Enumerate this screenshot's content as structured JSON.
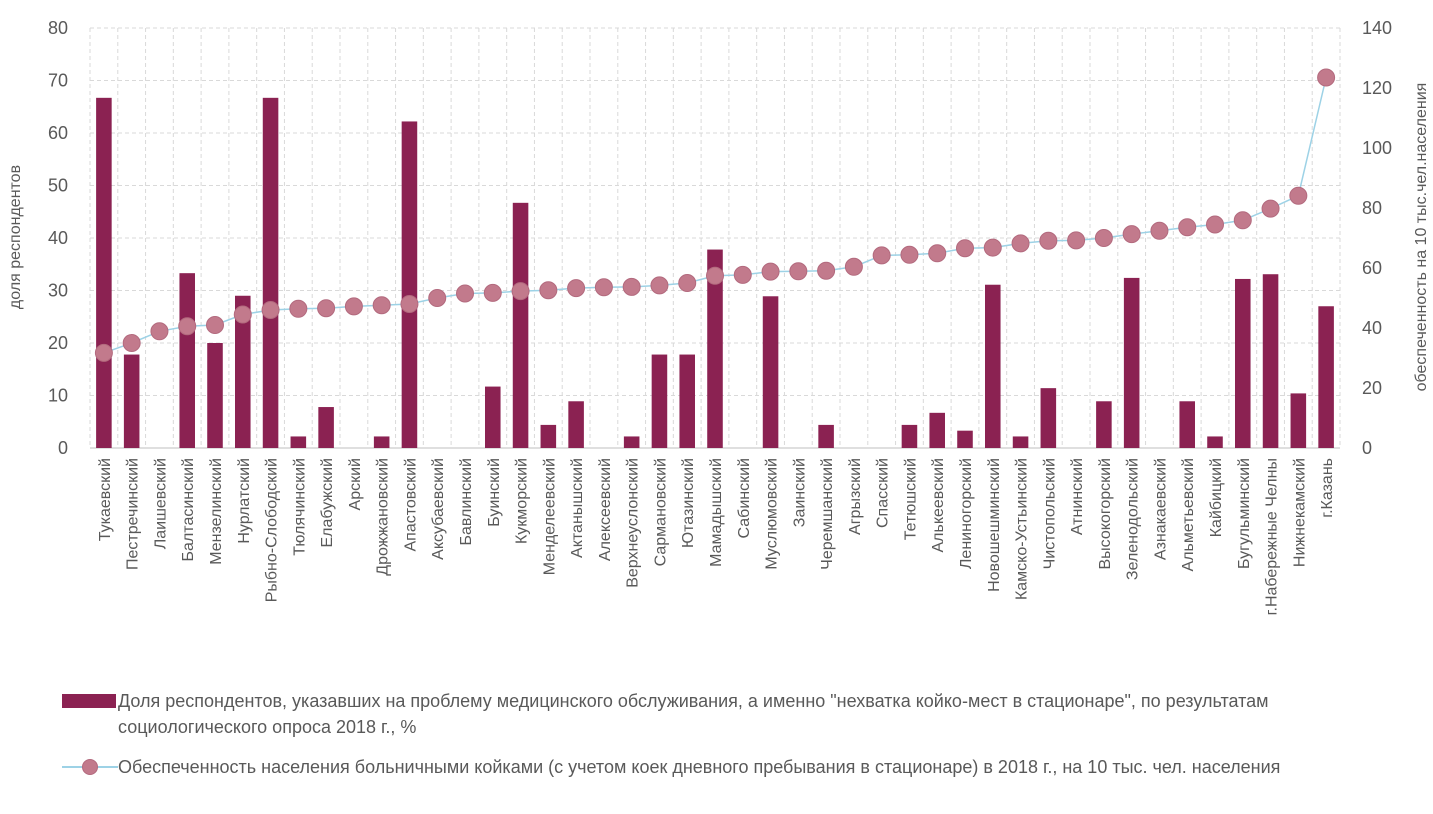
{
  "chart_data": {
    "type": "bar",
    "categories": [
      "Тукаевский",
      "Пестречинский",
      "Лаишевский",
      "Балтасинский",
      "Мензелинский",
      "Нурлатский",
      "Рыбно-Слободский",
      "Тюлячинский",
      "Елабужский",
      "Арский",
      "Дрожжановский",
      "Апастовский",
      "Аксубаевский",
      "Бавлинский",
      "Буинский",
      "Кукморский",
      "Менделеевский",
      "Актанышский",
      "Алексеевский",
      "Верхнеуслонский",
      "Сармановский",
      "Ютазинский",
      "Мамадышский",
      "Сабинский",
      "Муслюмовский",
      "Заинский",
      "Черемшанский",
      "Агрызский",
      "Спасский",
      "Тетюшский",
      "Алькеевский",
      "Лениногорский",
      "Новошешминский",
      "Камско-Устьинский",
      "Чистопольский",
      "Атнинский",
      "Высокогорский",
      "Зеленодольский",
      "Азнакаевский",
      "Альметьевский",
      "Кайбицкий",
      "Бугульминский",
      "г.Набережные Челны",
      "Нижнекамский",
      "г.Казань"
    ],
    "series": [
      {
        "name": "Доля респондентов, указавших на проблему медицинского обслуживания, а именно \"нехватка койко-мест в стационаре\", по результатам социологического опроса 2018 г., %",
        "type": "bar",
        "axis": "left",
        "color": "#8B2252",
        "values": [
          66.7,
          17.8,
          0,
          33.3,
          20,
          29,
          66.7,
          2.2,
          7.8,
          0,
          2.2,
          62.2,
          0,
          0,
          11.7,
          46.7,
          4.4,
          8.9,
          0,
          2.2,
          17.8,
          17.8,
          37.8,
          0,
          28.9,
          0,
          4.4,
          0,
          0,
          4.4,
          6.7,
          3.3,
          31.1,
          2.2,
          11.4,
          0,
          8.9,
          32.4,
          0,
          8.9,
          2.2,
          32.2,
          33.1,
          10.4,
          27
        ]
      },
      {
        "name": "Обеспеченность населения больничными койками (с учетом коек дневного пребывания в стационаре) в 2018 г., на 10 тыс. чел. населения",
        "type": "line",
        "axis": "right",
        "color": "#9dd2e6",
        "marker_color": "#c27a8c",
        "values": [
          31.7,
          35,
          38.9,
          40.6,
          41,
          44.5,
          46,
          46.4,
          46.6,
          47.2,
          47.6,
          48,
          50,
          51.5,
          51.7,
          52.3,
          52.6,
          53.3,
          53.6,
          53.7,
          54.2,
          55,
          57.4,
          57.7,
          58.8,
          58.9,
          59.1,
          60.4,
          64.2,
          64.4,
          64.9,
          66.6,
          66.8,
          68.2,
          69.1,
          69.2,
          70,
          71.3,
          72.4,
          73.6,
          74.5,
          75.9,
          79.8,
          84.1,
          123.5
        ]
      }
    ],
    "ylabel": "доля респондентов",
    "y2label": "обеспеченность  на 10 тыс.чел.населения",
    "ylim": [
      0,
      80
    ],
    "y2lim": [
      0,
      140
    ],
    "yticks": [
      0,
      10,
      20,
      30,
      40,
      50,
      60,
      70,
      80
    ],
    "y2ticks": [
      0,
      20,
      40,
      60,
      80,
      100,
      120,
      140
    ],
    "grid": true,
    "legend_position": "bottom"
  }
}
